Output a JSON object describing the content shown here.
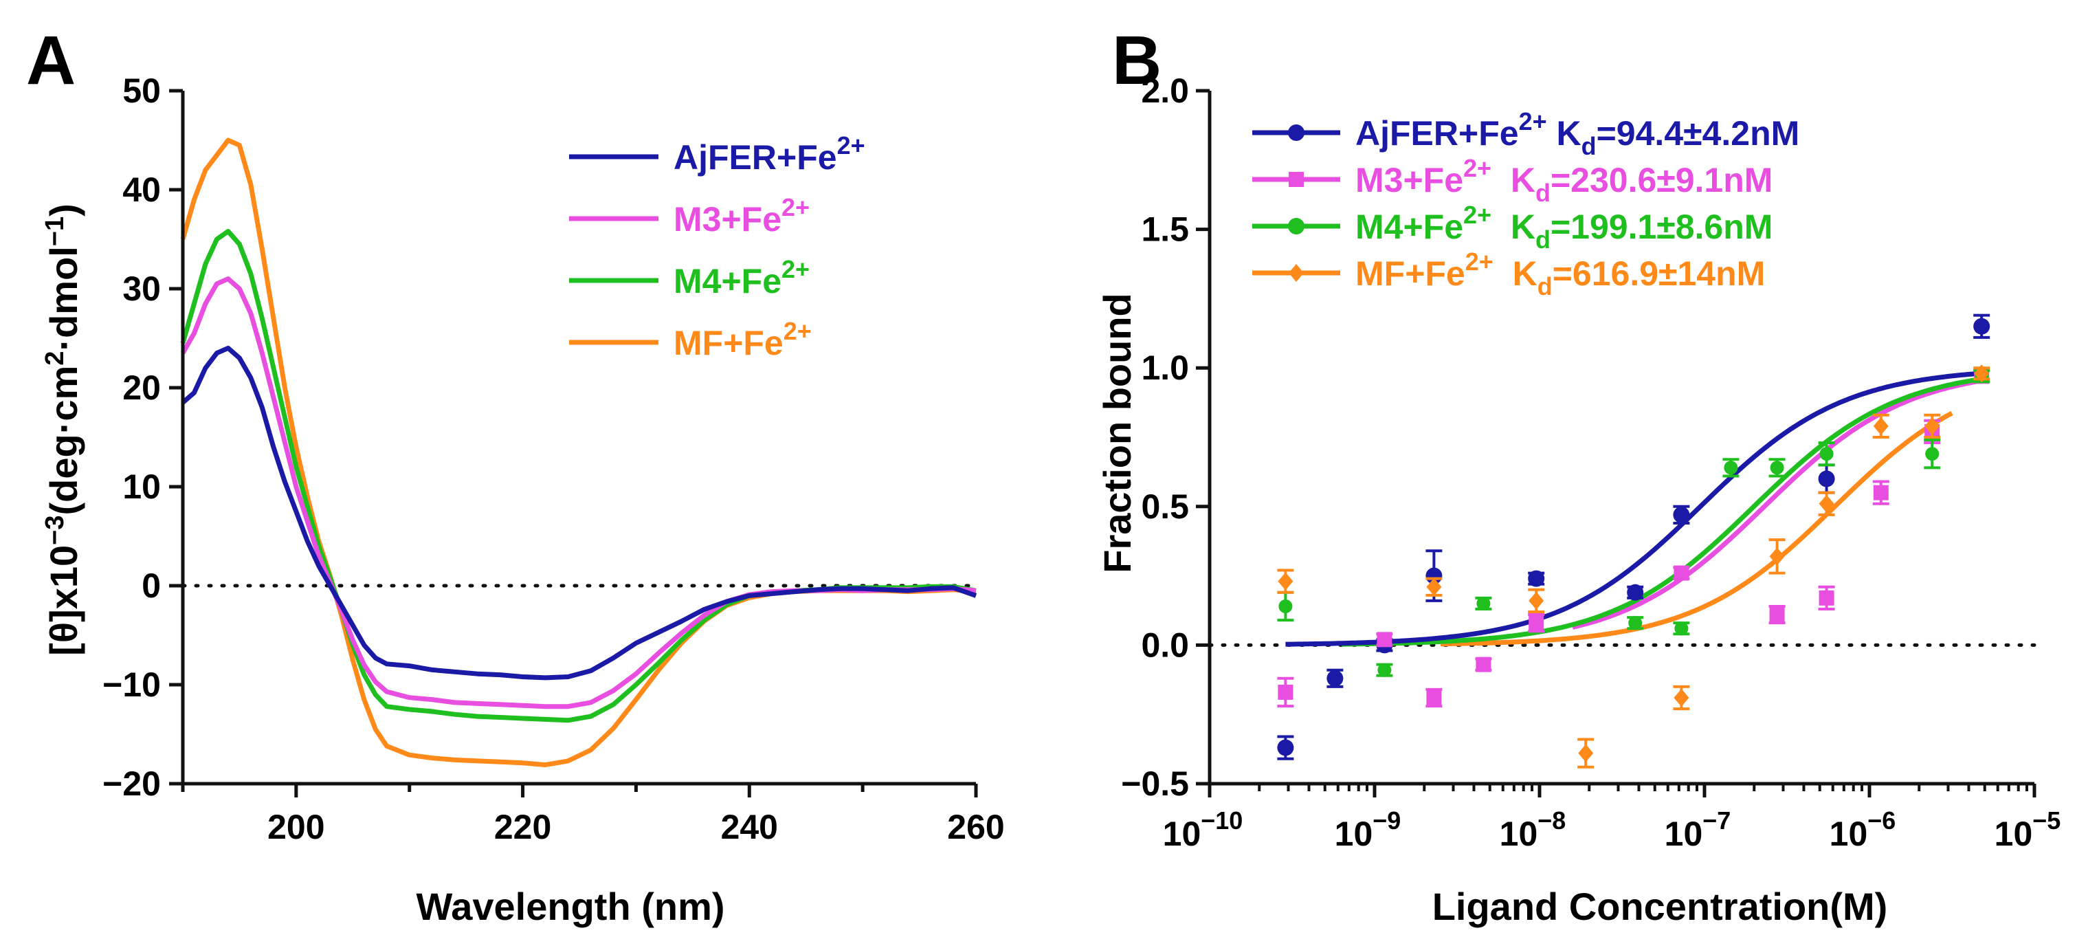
{
  "colors": {
    "AjFER": "#1a1aa6",
    "M3": "#e84fe0",
    "M4": "#1fbf1f",
    "MF": "#ff8a1a",
    "axis": "#111111"
  },
  "chart_data": [
    {
      "panel_label": "A",
      "type": "line",
      "title": "",
      "xlabel": "Wavelength (nm)",
      "ylabel_parts": [
        "[θ]x10",
        "−3",
        "(deg·cm",
        "2",
        "·dmol",
        "−1",
        ")"
      ],
      "xlim": [
        190,
        260
      ],
      "ylim": [
        -20,
        50
      ],
      "x_ticks": [
        200,
        220,
        240,
        260
      ],
      "x_tick_labels": [
        "200",
        "220",
        "240",
        "260"
      ],
      "y_ticks": [
        -20,
        -10,
        0,
        10,
        20,
        30,
        40,
        50
      ],
      "y_tick_labels": [
        "−20",
        "−10",
        "0",
        "10",
        "20",
        "30",
        "40",
        "50"
      ],
      "zero_line": true,
      "legend_position": "top-right",
      "series": [
        {
          "key": "AjFER",
          "name": "AjFER+Fe",
          "sup": "2+",
          "points": [
            [
              190,
              18.5
            ],
            [
              191,
              19.5
            ],
            [
              192,
              22
            ],
            [
              193,
              23.5
            ],
            [
              194,
              24
            ],
            [
              195,
              23
            ],
            [
              196,
              21
            ],
            [
              197,
              18
            ],
            [
              198,
              14
            ],
            [
              199,
              10.5
            ],
            [
              200,
              7.5
            ],
            [
              201,
              4.5
            ],
            [
              202,
              2
            ],
            [
              203,
              0
            ],
            [
              204,
              -2
            ],
            [
              205,
              -4
            ],
            [
              206,
              -6
            ],
            [
              207,
              -7.3
            ],
            [
              208,
              -7.9
            ],
            [
              210,
              -8.1
            ],
            [
              212,
              -8.5
            ],
            [
              214,
              -8.7
            ],
            [
              216,
              -8.9
            ],
            [
              218,
              -9
            ],
            [
              220,
              -9.2
            ],
            [
              222,
              -9.3
            ],
            [
              224,
              -9.2
            ],
            [
              226,
              -8.6
            ],
            [
              228,
              -7.3
            ],
            [
              230,
              -5.8
            ],
            [
              232,
              -4.7
            ],
            [
              234,
              -3.6
            ],
            [
              236,
              -2.4
            ],
            [
              238,
              -1.6
            ],
            [
              240,
              -1
            ],
            [
              242,
              -0.8
            ],
            [
              244,
              -0.6
            ],
            [
              246,
              -0.4
            ],
            [
              248,
              -0.3
            ],
            [
              250,
              -0.3
            ],
            [
              252,
              -0.4
            ],
            [
              254,
              -0.5
            ],
            [
              256,
              -0.3
            ],
            [
              258,
              -0.2
            ],
            [
              260,
              -1
            ]
          ]
        },
        {
          "key": "M3",
          "name": "M3+Fe",
          "sup": "2+",
          "points": [
            [
              190,
              23.5
            ],
            [
              191,
              25.5
            ],
            [
              192,
              28.5
            ],
            [
              193,
              30.5
            ],
            [
              194,
              31
            ],
            [
              195,
              30
            ],
            [
              196,
              27.5
            ],
            [
              197,
              23.5
            ],
            [
              198,
              19
            ],
            [
              199,
              14.5
            ],
            [
              200,
              10
            ],
            [
              201,
              6.5
            ],
            [
              202,
              3
            ],
            [
              203,
              0.3
            ],
            [
              204,
              -2.5
            ],
            [
              205,
              -5.5
            ],
            [
              206,
              -8
            ],
            [
              207,
              -9.7
            ],
            [
              208,
              -10.7
            ],
            [
              210,
              -11.3
            ],
            [
              212,
              -11.5
            ],
            [
              214,
              -11.8
            ],
            [
              216,
              -11.9
            ],
            [
              218,
              -12
            ],
            [
              220,
              -12.1
            ],
            [
              222,
              -12.2
            ],
            [
              224,
              -12.2
            ],
            [
              226,
              -11.8
            ],
            [
              228,
              -10.6
            ],
            [
              230,
              -8.9
            ],
            [
              232,
              -6.8
            ],
            [
              234,
              -4.8
            ],
            [
              236,
              -3
            ],
            [
              238,
              -1.6
            ],
            [
              240,
              -0.9
            ],
            [
              242,
              -0.6
            ],
            [
              244,
              -0.5
            ],
            [
              246,
              -0.5
            ],
            [
              248,
              -0.4
            ],
            [
              250,
              -0.5
            ],
            [
              252,
              -0.4
            ],
            [
              254,
              -0.4
            ],
            [
              256,
              -0.4
            ],
            [
              258,
              -0.3
            ],
            [
              260,
              -0.5
            ]
          ]
        },
        {
          "key": "M4",
          "name": "M4+Fe",
          "sup": "2+",
          "points": [
            [
              190,
              24.5
            ],
            [
              191,
              28.5
            ],
            [
              192,
              32.5
            ],
            [
              193,
              35
            ],
            [
              194,
              35.8
            ],
            [
              195,
              34.5
            ],
            [
              196,
              31.5
            ],
            [
              197,
              27
            ],
            [
              198,
              22
            ],
            [
              199,
              17
            ],
            [
              200,
              12
            ],
            [
              201,
              8
            ],
            [
              202,
              4
            ],
            [
              203,
              0.8
            ],
            [
              204,
              -2.5
            ],
            [
              205,
              -6
            ],
            [
              206,
              -9
            ],
            [
              207,
              -11
            ],
            [
              208,
              -12.2
            ],
            [
              210,
              -12.5
            ],
            [
              212,
              -12.7
            ],
            [
              214,
              -13
            ],
            [
              216,
              -13.2
            ],
            [
              218,
              -13.3
            ],
            [
              220,
              -13.4
            ],
            [
              222,
              -13.5
            ],
            [
              224,
              -13.6
            ],
            [
              226,
              -13.2
            ],
            [
              228,
              -12
            ],
            [
              230,
              -10
            ],
            [
              232,
              -7.8
            ],
            [
              234,
              -5.5
            ],
            [
              236,
              -3.5
            ],
            [
              238,
              -1.9
            ],
            [
              240,
              -1
            ],
            [
              242,
              -0.7
            ],
            [
              244,
              -0.5
            ],
            [
              246,
              -0.4
            ],
            [
              248,
              -0.2
            ],
            [
              250,
              -0.2
            ],
            [
              252,
              -0.2
            ],
            [
              254,
              -0.2
            ],
            [
              256,
              -0.1
            ],
            [
              258,
              -0.1
            ],
            [
              260,
              -0.5
            ]
          ]
        },
        {
          "key": "MF",
          "name": "MF+Fe",
          "sup": "2+",
          "points": [
            [
              190,
              35
            ],
            [
              191,
              39
            ],
            [
              192,
              42
            ],
            [
              193,
              43.5
            ],
            [
              194,
              45
            ],
            [
              195,
              44.5
            ],
            [
              196,
              40.5
            ],
            [
              197,
              34
            ],
            [
              198,
              27
            ],
            [
              199,
              20
            ],
            [
              200,
              14
            ],
            [
              201,
              9
            ],
            [
              202,
              4.5
            ],
            [
              203,
              1
            ],
            [
              204,
              -3
            ],
            [
              205,
              -7.5
            ],
            [
              206,
              -11.5
            ],
            [
              207,
              -14.5
            ],
            [
              208,
              -16.2
            ],
            [
              210,
              -17.1
            ],
            [
              212,
              -17.4
            ],
            [
              214,
              -17.6
            ],
            [
              216,
              -17.7
            ],
            [
              218,
              -17.8
            ],
            [
              220,
              -17.9
            ],
            [
              222,
              -18.1
            ],
            [
              224,
              -17.7
            ],
            [
              226,
              -16.6
            ],
            [
              228,
              -14.4
            ],
            [
              230,
              -11.5
            ],
            [
              232,
              -8.5
            ],
            [
              234,
              -5.8
            ],
            [
              236,
              -3.6
            ],
            [
              238,
              -2
            ],
            [
              240,
              -1.2
            ],
            [
              242,
              -0.8
            ],
            [
              244,
              -0.6
            ],
            [
              246,
              -0.5
            ],
            [
              248,
              -0.5
            ],
            [
              250,
              -0.5
            ],
            [
              252,
              -0.5
            ],
            [
              254,
              -0.6
            ],
            [
              256,
              -0.5
            ],
            [
              258,
              -0.4
            ],
            [
              260,
              -0.6
            ]
          ]
        }
      ]
    },
    {
      "panel_label": "B",
      "type": "scatter",
      "title": "",
      "xlabel": "Ligand Concentration(M)",
      "ylabel": "Fraction bound",
      "x_scale": "log10",
      "xlim": [
        -10,
        -5
      ],
      "ylim": [
        -0.5,
        2.0
      ],
      "x_ticks": [
        -10,
        -9,
        -8,
        -7,
        -6,
        -5
      ],
      "x_tick_labels": [
        [
          "10",
          "−10"
        ],
        [
          "10",
          "−9"
        ],
        [
          "10",
          "−8"
        ],
        [
          "10",
          "−7"
        ],
        [
          "10",
          "−6"
        ],
        [
          "10",
          "−5"
        ]
      ],
      "y_ticks": [
        -0.5,
        0,
        0.5,
        1.0,
        1.5,
        2.0
      ],
      "y_tick_labels": [
        "−0.5",
        "0.0",
        "0.5",
        "1.0",
        "1.5",
        "2.0"
      ],
      "zero_line": true,
      "legend_position": "top-left",
      "series": [
        {
          "key": "AjFER",
          "name": "AjFER+Fe",
          "sup": "2+",
          "kd_prefix": " K",
          "kd_sub": "d",
          "kd_value": "=94.4±4.2nM",
          "kd_M": 9.44e-08,
          "marker": "circle",
          "points": [
            [
              -9.54,
              -0.37,
              0.04
            ],
            [
              -9.24,
              -0.12,
              0.03
            ],
            [
              -8.94,
              0.0,
              0.02
            ],
            [
              -8.64,
              0.25,
              0.09
            ],
            [
              -8.02,
              0.24,
              0.02
            ],
            [
              -7.42,
              0.19,
              0.02
            ],
            [
              -7.14,
              0.47,
              0.03
            ],
            [
              -6.26,
              0.6,
              0.05
            ],
            [
              -5.32,
              1.15,
              0.04
            ]
          ]
        },
        {
          "key": "M3",
          "name": "M3+Fe",
          "sup": "2+",
          "kd_prefix": "  K",
          "kd_sub": "d",
          "kd_value": "=230.6±9.1nM",
          "kd_M": 2.306e-07,
          "marker": "square",
          "points": [
            [
              -9.54,
              -0.17,
              0.05
            ],
            [
              -8.94,
              0.02,
              0.02
            ],
            [
              -8.64,
              -0.19,
              0.03
            ],
            [
              -8.34,
              -0.07,
              0.02
            ],
            [
              -8.02,
              0.08,
              0.03
            ],
            [
              -7.14,
              0.26,
              0.02
            ],
            [
              -6.56,
              0.11,
              0.03
            ],
            [
              -6.26,
              0.17,
              0.04
            ],
            [
              -5.93,
              0.55,
              0.04
            ],
            [
              -5.62,
              0.77,
              0.04
            ],
            [
              -5.32,
              0.97,
              0.02
            ]
          ]
        },
        {
          "key": "M4",
          "name": "M4+Fe",
          "sup": "2+",
          "kd_prefix": "  K",
          "kd_sub": "d",
          "kd_value": "=199.1±8.6nM",
          "kd_M": 1.991e-07,
          "marker": "circle",
          "points": [
            [
              -9.54,
              0.14,
              0.05
            ],
            [
              -8.94,
              -0.09,
              0.02
            ],
            [
              -8.34,
              0.15,
              0.02
            ],
            [
              -7.42,
              0.08,
              0.02
            ],
            [
              -7.14,
              0.06,
              0.02
            ],
            [
              -6.84,
              0.64,
              0.03
            ],
            [
              -6.56,
              0.64,
              0.03
            ],
            [
              -6.26,
              0.69,
              0.04
            ],
            [
              -5.62,
              0.69,
              0.05
            ],
            [
              -5.32,
              0.97,
              0.02
            ]
          ]
        },
        {
          "key": "MF",
          "name": "MF+Fe",
          "sup": "2+",
          "kd_prefix": "  K",
          "kd_sub": "d",
          "kd_value": "=616.9±14nM",
          "kd_M": 6.169e-07,
          "marker": "diamond",
          "points": [
            [
              -9.54,
              0.23,
              0.04
            ],
            [
              -8.64,
              0.21,
              0.03
            ],
            [
              -8.02,
              0.16,
              0.04
            ],
            [
              -7.72,
              -0.39,
              0.05
            ],
            [
              -7.14,
              -0.19,
              0.04
            ],
            [
              -6.56,
              0.32,
              0.06
            ],
            [
              -6.26,
              0.51,
              0.04
            ],
            [
              -5.93,
              0.79,
              0.04
            ],
            [
              -5.62,
              0.79,
              0.04
            ],
            [
              -5.32,
              0.98,
              0.02
            ]
          ]
        }
      ]
    }
  ]
}
